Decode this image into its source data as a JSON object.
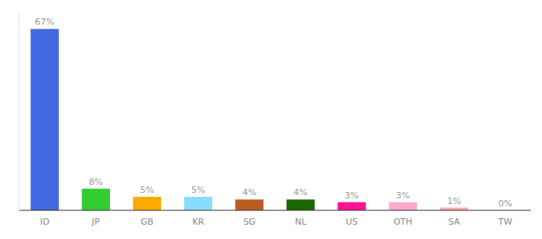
{
  "chart_data": {
    "type": "bar",
    "categories": [
      "ID",
      "JP",
      "GB",
      "KR",
      "SG",
      "NL",
      "US",
      "OTH",
      "SA",
      "TW"
    ],
    "values": [
      67,
      8,
      5,
      5,
      4,
      4,
      3,
      3,
      1,
      0
    ],
    "value_labels": [
      "67%",
      "8%",
      "5%",
      "5%",
      "4%",
      "4%",
      "3%",
      "3%",
      "1%",
      "0%"
    ],
    "colors": [
      "#4169e1",
      "#33cc33",
      "#ffaa00",
      "#88ddff",
      "#b85c20",
      "#1a6600",
      "#ff1493",
      "#ffaacc",
      "#ffaaaa",
      "#ffaaaa"
    ],
    "ylim": [
      0,
      73
    ],
    "data_labels": true,
    "tick_labels": "x",
    "grid": false
  }
}
